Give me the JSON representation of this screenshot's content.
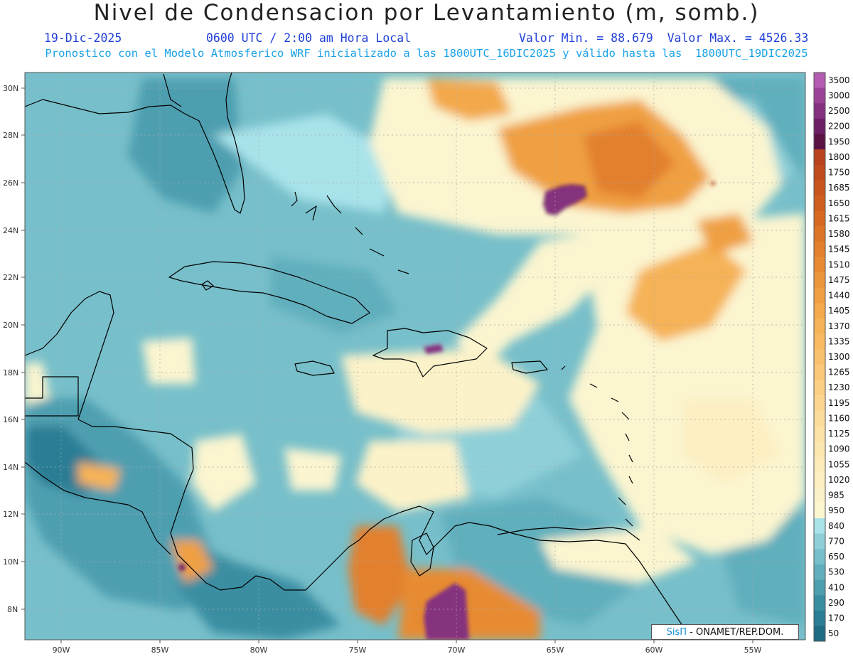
{
  "header": {
    "title": "Nivel de Condensacion por Levantamiento (m, somb.)",
    "date": "19-Dic-2025",
    "time": "0600 UTC / 2:00 am Hora Local",
    "minmax": "Valor Min. = 88.679  Valor Max. = 4526.33",
    "model_info": "Pronostico con el Modelo Atmosferico WRF inicializado a las 1800UTC_16DIC2025 y válido hasta las  1800UTC_19DIC2025"
  },
  "map": {
    "lat_labels": [
      "30N",
      "28N",
      "26N",
      "24N",
      "22N",
      "20N",
      "18N",
      "16N",
      "14N",
      "12N",
      "10N",
      "8N"
    ],
    "lon_labels": [
      "90W",
      "85W",
      "80W",
      "75W",
      "70W",
      "65W",
      "60W",
      "55W"
    ]
  },
  "colorbar": {
    "labels": [
      "3500",
      "3000",
      "2500",
      "2200",
      "1950",
      "1800",
      "1750",
      "1685",
      "1650",
      "1615",
      "1580",
      "1545",
      "1510",
      "1475",
      "1440",
      "1405",
      "1370",
      "1335",
      "1300",
      "1265",
      "1230",
      "1195",
      "1160",
      "1125",
      "1090",
      "1055",
      "1020",
      "985",
      "950",
      "840",
      "770",
      "650",
      "530",
      "410",
      "290",
      "170",
      "50"
    ],
    "colors": [
      "#b45db0",
      "#9b4497",
      "#85317f",
      "#6e2066",
      "#5a1245",
      "#b8431e",
      "#c04b1c",
      "#c8551c",
      "#cf5f1e",
      "#d66a22",
      "#dd7527",
      "#e2802d",
      "#e78b33",
      "#ec963a",
      "#f0a043",
      "#f3a94c",
      "#f6b257",
      "#f8ba62",
      "#f9c16d",
      "#fac878",
      "#fbcf84",
      "#fcd690",
      "#fcdc9b",
      "#fde2a6",
      "#fde7b0",
      "#fdebb9",
      "#fdefc2",
      "#fcf2c9",
      "#fbf5d0",
      "#a9e3ea",
      "#8fd0d8",
      "#77bfca",
      "#61afbd",
      "#4d9fb0",
      "#3a8ea2",
      "#2a7d94",
      "#1d6c84"
    ]
  },
  "credit": {
    "brand": "SisΠ",
    "text": " - ONAMET/REP.DOM."
  }
}
